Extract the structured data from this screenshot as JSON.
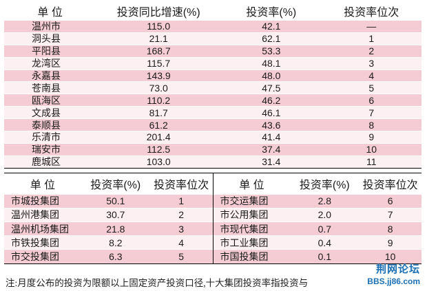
{
  "top_table": {
    "headers": [
      "单  位",
      "投资同比增速(%)",
      "投资率(%)",
      "投资率位次"
    ],
    "rows": [
      [
        "温州市",
        "115.0",
        "42.1",
        "—"
      ],
      [
        "洞头县",
        "21.1",
        "62.1",
        "1"
      ],
      [
        "平阳县",
        "168.7",
        "53.3",
        "2"
      ],
      [
        "龙湾区",
        "115.7",
        "48.1",
        "3"
      ],
      [
        "永嘉县",
        "143.9",
        "48.0",
        "4"
      ],
      [
        "苍南县",
        "73.0",
        "47.5",
        "5"
      ],
      [
        "瓯海区",
        "110.2",
        "46.2",
        "6"
      ],
      [
        "文成县",
        "81.7",
        "46.1",
        "7"
      ],
      [
        "泰顺县",
        "61.2",
        "43.6",
        "8"
      ],
      [
        "乐清市",
        "201.4",
        "41.4",
        "9"
      ],
      [
        "瑞安市",
        "112.5",
        "37.4",
        "10"
      ],
      [
        "鹿城区",
        "103.0",
        "31.4",
        "11"
      ]
    ]
  },
  "bottom_left": {
    "headers": [
      "单  位",
      "投资率(%)",
      "投资率位次"
    ],
    "rows": [
      [
        "市城投集团",
        "50.1",
        "1"
      ],
      [
        "温州港集团",
        "30.7",
        "2"
      ],
      [
        "温州机场集团",
        "21.8",
        "3"
      ],
      [
        "市铁投集团",
        "8.2",
        "4"
      ],
      [
        "市交投集团",
        "6.3",
        "5"
      ]
    ]
  },
  "bottom_right": {
    "headers": [
      "单  位",
      "投资率(%)",
      "投资率位次"
    ],
    "rows": [
      [
        "市交运集团",
        "2.8",
        "6"
      ],
      [
        "市公用集团",
        "2.0",
        "7"
      ],
      [
        "市现代集团",
        "0.7",
        "8"
      ],
      [
        "市工业集团",
        "0.4",
        "9"
      ],
      [
        "市国投集团",
        "0.1",
        "10"
      ]
    ]
  },
  "note": "注:月度公布的投资为限额以上固定资产投资口径,十大集团投资率指投资与",
  "watermark": {
    "title": "荆网论坛",
    "url": "BBS.jj86.com"
  }
}
